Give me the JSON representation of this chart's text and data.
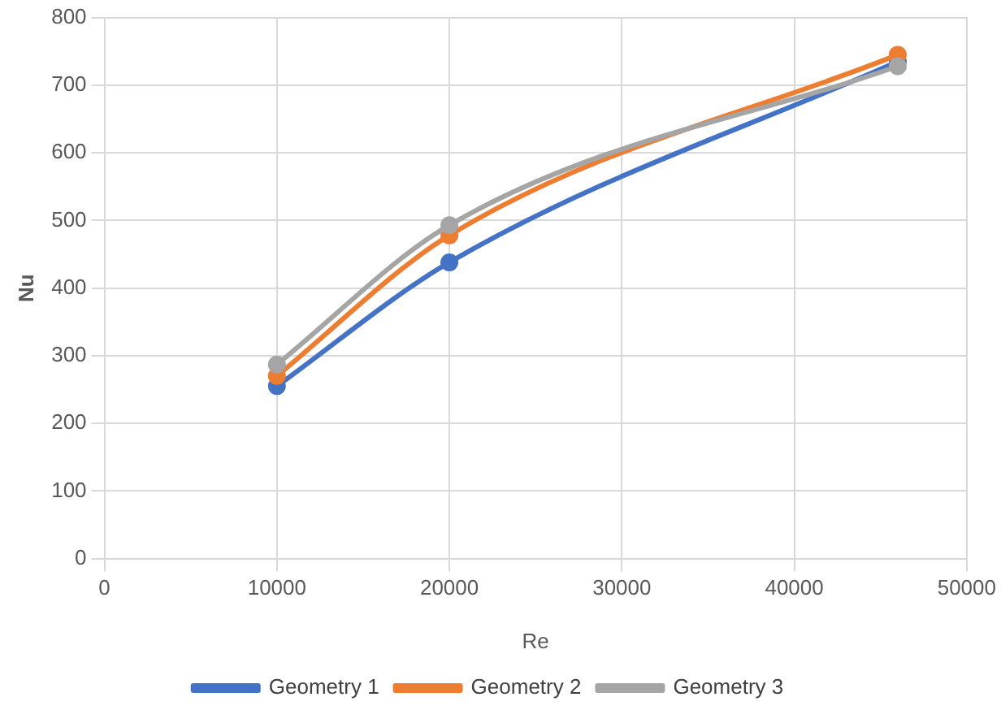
{
  "chart_data": {
    "type": "line",
    "xlabel": "Re",
    "ylabel": "Nu",
    "x": [
      10000,
      20000,
      46000
    ],
    "xlim": [
      0,
      50000
    ],
    "xticks": [
      0,
      10000,
      20000,
      30000,
      40000,
      50000
    ],
    "ylim": [
      0,
      800
    ],
    "yticks": [
      0,
      100,
      200,
      300,
      400,
      500,
      600,
      700,
      800
    ],
    "grid": true,
    "legend": "bottom",
    "marker": "circle",
    "series": [
      {
        "name": "Geometry 1",
        "color": "#4472c4",
        "values": [
          255,
          438,
          735
        ]
      },
      {
        "name": "Geometry 2",
        "color": "#ed7d31",
        "values": [
          270,
          478,
          745
        ]
      },
      {
        "name": "Geometry 3",
        "color": "#a5a5a5",
        "values": [
          287,
          493,
          728
        ]
      }
    ]
  }
}
